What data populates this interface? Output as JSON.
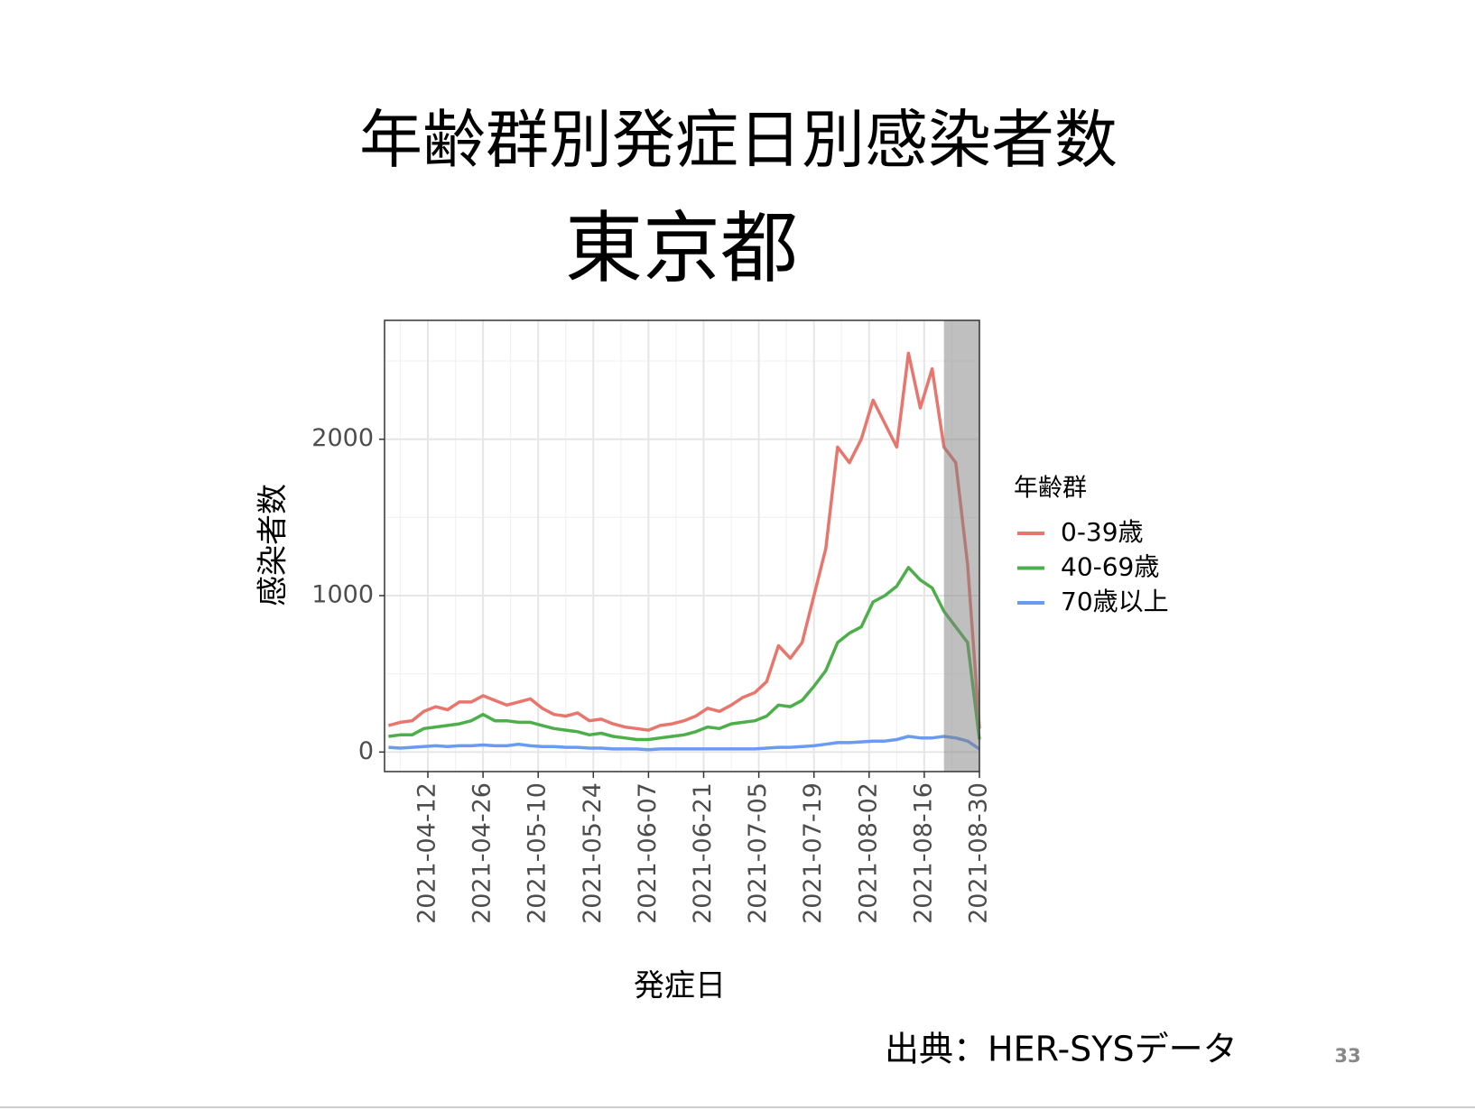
{
  "page_number": "33",
  "source": "出典：HER-SYSデータ",
  "chart_data": {
    "type": "line",
    "title": "年齢群別発症日別感染者数",
    "subtitle": "東京都",
    "x_label": "発症日",
    "y_label": "感染者数",
    "legend_title": "年齢群",
    "x": [
      "2021-04-02",
      "2021-04-05",
      "2021-04-08",
      "2021-04-11",
      "2021-04-14",
      "2021-04-17",
      "2021-04-20",
      "2021-04-23",
      "2021-04-26",
      "2021-04-29",
      "2021-05-02",
      "2021-05-05",
      "2021-05-08",
      "2021-05-11",
      "2021-05-14",
      "2021-05-17",
      "2021-05-20",
      "2021-05-23",
      "2021-05-26",
      "2021-05-29",
      "2021-06-01",
      "2021-06-04",
      "2021-06-07",
      "2021-06-10",
      "2021-06-13",
      "2021-06-16",
      "2021-06-19",
      "2021-06-22",
      "2021-06-25",
      "2021-06-28",
      "2021-07-01",
      "2021-07-04",
      "2021-07-07",
      "2021-07-10",
      "2021-07-13",
      "2021-07-16",
      "2021-07-19",
      "2021-07-22",
      "2021-07-25",
      "2021-07-28",
      "2021-07-31",
      "2021-08-03",
      "2021-08-06",
      "2021-08-09",
      "2021-08-12",
      "2021-08-15",
      "2021-08-18",
      "2021-08-21",
      "2021-08-24",
      "2021-08-27",
      "2021-08-30"
    ],
    "series": [
      {
        "name": "0-39歳",
        "color": "#e8766d",
        "values": [
          170,
          190,
          200,
          260,
          290,
          270,
          320,
          320,
          360,
          330,
          300,
          320,
          340,
          280,
          240,
          230,
          250,
          200,
          210,
          180,
          160,
          150,
          140,
          170,
          180,
          200,
          230,
          280,
          260,
          300,
          350,
          380,
          450,
          680,
          600,
          700,
          1000,
          1300,
          1950,
          1850,
          2000,
          2250,
          2100,
          1950,
          2550,
          2200,
          2450,
          1950,
          1850,
          1200,
          150
        ]
      },
      {
        "name": "40-69歳",
        "color": "#4daf4a",
        "values": [
          100,
          110,
          110,
          150,
          160,
          170,
          180,
          200,
          240,
          200,
          200,
          190,
          190,
          170,
          150,
          140,
          130,
          110,
          120,
          100,
          90,
          80,
          80,
          90,
          100,
          110,
          130,
          160,
          150,
          180,
          190,
          200,
          230,
          300,
          290,
          330,
          420,
          520,
          700,
          760,
          800,
          960,
          1000,
          1060,
          1180,
          1100,
          1050,
          900,
          800,
          700,
          80
        ]
      },
      {
        "name": "70歳以上",
        "color": "#6b9bf0",
        "values": [
          30,
          25,
          30,
          35,
          40,
          35,
          40,
          40,
          45,
          40,
          40,
          50,
          40,
          35,
          35,
          30,
          30,
          25,
          25,
          20,
          20,
          20,
          15,
          20,
          20,
          20,
          20,
          20,
          20,
          20,
          20,
          20,
          25,
          30,
          30,
          35,
          40,
          50,
          60,
          60,
          65,
          70,
          70,
          80,
          100,
          90,
          90,
          100,
          90,
          70,
          20
        ]
      }
    ],
    "xlim": [
      "2021-04-01",
      "2021-08-30"
    ],
    "xticks": [
      "2021-04-12",
      "2021-04-26",
      "2021-05-10",
      "2021-05-24",
      "2021-06-07",
      "2021-06-21",
      "2021-07-05",
      "2021-07-19",
      "2021-08-02",
      "2021-08-16",
      "2021-08-30"
    ],
    "ylim": [
      -125,
      2760
    ],
    "yticks": [
      0,
      1000,
      2000
    ],
    "grid": true,
    "shade_xlim": [
      "2021-08-21",
      "2021-08-30"
    ],
    "shade_color": "#808080",
    "legend": "right"
  }
}
